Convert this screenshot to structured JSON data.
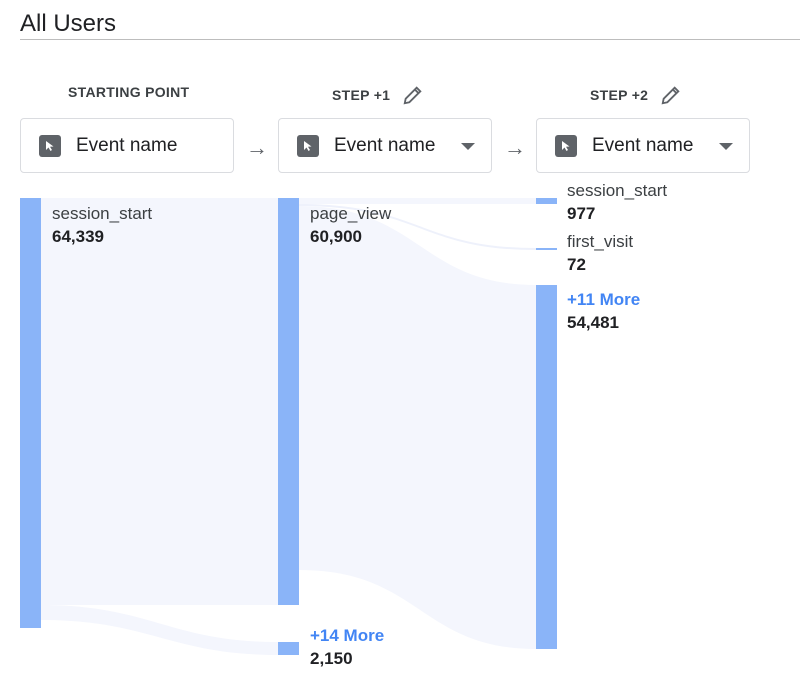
{
  "title": "All Users",
  "steps": [
    {
      "header": "STARTING POINT",
      "dimension": "Event name"
    },
    {
      "header": "STEP +1",
      "dimension": "Event name"
    },
    {
      "header": "STEP +2",
      "dimension": "Event name"
    }
  ],
  "nodes": {
    "start": {
      "label": "session_start",
      "value": "64,339"
    },
    "step1_main": {
      "label": "page_view",
      "value": "60,900"
    },
    "step1_more": {
      "label": "+14 More",
      "value": "2,150"
    },
    "step2_a": {
      "label": "session_start",
      "value": "977"
    },
    "step2_b": {
      "label": "first_visit",
      "value": "72"
    },
    "step2_more": {
      "label": "+11 More",
      "value": "54,481"
    }
  },
  "colors": {
    "bar": "#8ab4f8",
    "flow": "#f4f6fd",
    "link": "#4285f4"
  }
}
